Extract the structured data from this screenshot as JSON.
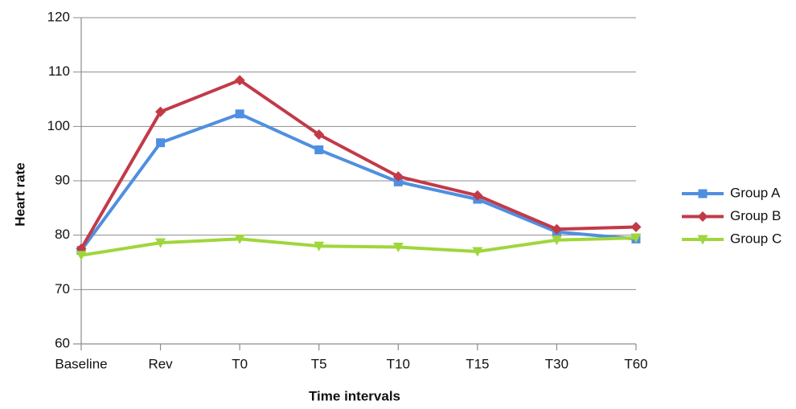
{
  "chart_data": {
    "type": "line",
    "x_label": "Time intervals",
    "y_label": "Heart rate",
    "categories": [
      "Baseline",
      "Rev",
      "T0",
      "T5",
      "T10",
      "T15",
      "T30",
      "T60"
    ],
    "series": [
      {
        "name": "Group A",
        "color": "#4f8fe0",
        "marker": "square",
        "values": [
          77.2,
          97.0,
          102.3,
          95.7,
          89.8,
          86.6,
          80.6,
          79.3
        ]
      },
      {
        "name": "Group B",
        "color": "#c23a48",
        "marker": "diamond",
        "values": [
          77.5,
          102.7,
          108.5,
          98.5,
          90.8,
          87.3,
          81.1,
          81.5
        ]
      },
      {
        "name": "Group C",
        "color": "#9fd63c",
        "marker": "triangle-down",
        "values": [
          76.3,
          78.6,
          79.3,
          78.0,
          77.8,
          77.0,
          79.1,
          79.5
        ]
      }
    ],
    "ylim": [
      60,
      120
    ],
    "yticks": [
      60,
      70,
      80,
      90,
      100,
      110,
      120
    ],
    "grid": true,
    "legend": "right"
  }
}
